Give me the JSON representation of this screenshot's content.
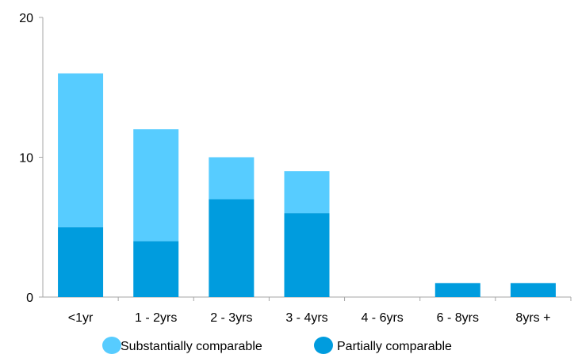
{
  "chart_data": {
    "type": "bar",
    "stacked": true,
    "categories": [
      "<1yr",
      "1 - 2yrs",
      "2 - 3yrs",
      "3 - 4yrs",
      "4 - 6yrs",
      "6 - 8yrs",
      "8yrs +"
    ],
    "series": [
      {
        "name": "Partially comparable",
        "color": "#009CDE",
        "values": [
          5,
          4,
          7,
          6,
          0,
          1,
          1
        ]
      },
      {
        "name": "Substantially comparable",
        "color": "#57CCFF",
        "values": [
          11,
          8,
          3,
          3,
          0,
          0,
          0
        ]
      }
    ],
    "title": "",
    "xlabel": "",
    "ylabel": "",
    "ylim": [
      0,
      20
    ],
    "yticks": [
      "0",
      "10",
      "20"
    ],
    "grid": false,
    "legend": {
      "position": "bottom",
      "order": [
        "Substantially comparable",
        "Partially comparable"
      ]
    },
    "axis_color": "#A6A6A6"
  }
}
